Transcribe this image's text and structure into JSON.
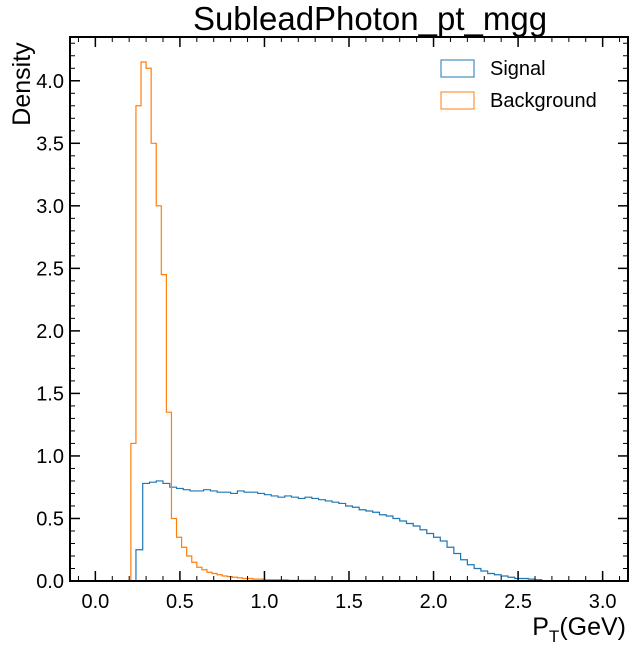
{
  "chart_data": {
    "type": "histogram",
    "title": "SubleadPhoton_pt_mgg",
    "xlabel_main": "P",
    "xlabel_sub": "T",
    "xlabel_rest": "(GeV)",
    "ylabel": "Density",
    "xlim": [
      -0.15,
      3.15
    ],
    "ylim": [
      0,
      4.35
    ],
    "xticks": [
      "0.0",
      "0.5",
      "1.0",
      "1.5",
      "2.0",
      "2.5",
      "3.0"
    ],
    "yticks": [
      "0.0",
      "0.5",
      "1.0",
      "1.5",
      "2.0",
      "2.5",
      "3.0",
      "3.5",
      "4.0"
    ],
    "legend_position": "top-right",
    "series": [
      {
        "name": "Signal",
        "color": "#1f77b4",
        "bin_width": 0.04,
        "x_start": 0.0,
        "values": [
          0,
          0,
          0,
          0,
          0,
          0,
          0.25,
          0.78,
          0.79,
          0.8,
          0.78,
          0.75,
          0.74,
          0.73,
          0.72,
          0.72,
          0.73,
          0.72,
          0.71,
          0.71,
          0.7,
          0.72,
          0.71,
          0.71,
          0.7,
          0.69,
          0.68,
          0.67,
          0.68,
          0.67,
          0.66,
          0.67,
          0.66,
          0.65,
          0.64,
          0.63,
          0.62,
          0.6,
          0.59,
          0.57,
          0.56,
          0.55,
          0.53,
          0.52,
          0.5,
          0.48,
          0.46,
          0.44,
          0.41,
          0.38,
          0.35,
          0.32,
          0.27,
          0.22,
          0.17,
          0.13,
          0.1,
          0.08,
          0.06,
          0.05,
          0.04,
          0.03,
          0.02,
          0.02,
          0.015,
          0.01
        ]
      },
      {
        "name": "Background",
        "color": "#ff7f0e",
        "bin_width": 0.03,
        "x_start": 0.0,
        "values": [
          0,
          0,
          0,
          0,
          0,
          0,
          0,
          1.1,
          3.8,
          4.15,
          4.1,
          3.5,
          3.0,
          2.45,
          1.35,
          0.5,
          0.35,
          0.27,
          0.2,
          0.15,
          0.11,
          0.09,
          0.07,
          0.06,
          0.05,
          0.04,
          0.035,
          0.03,
          0.025,
          0.02,
          0.02,
          0.015,
          0.015,
          0.01,
          0.01,
          0.01,
          0.01,
          0.01,
          0.005,
          0.005,
          0.005,
          0.005,
          0.005,
          0.005
        ]
      }
    ]
  }
}
